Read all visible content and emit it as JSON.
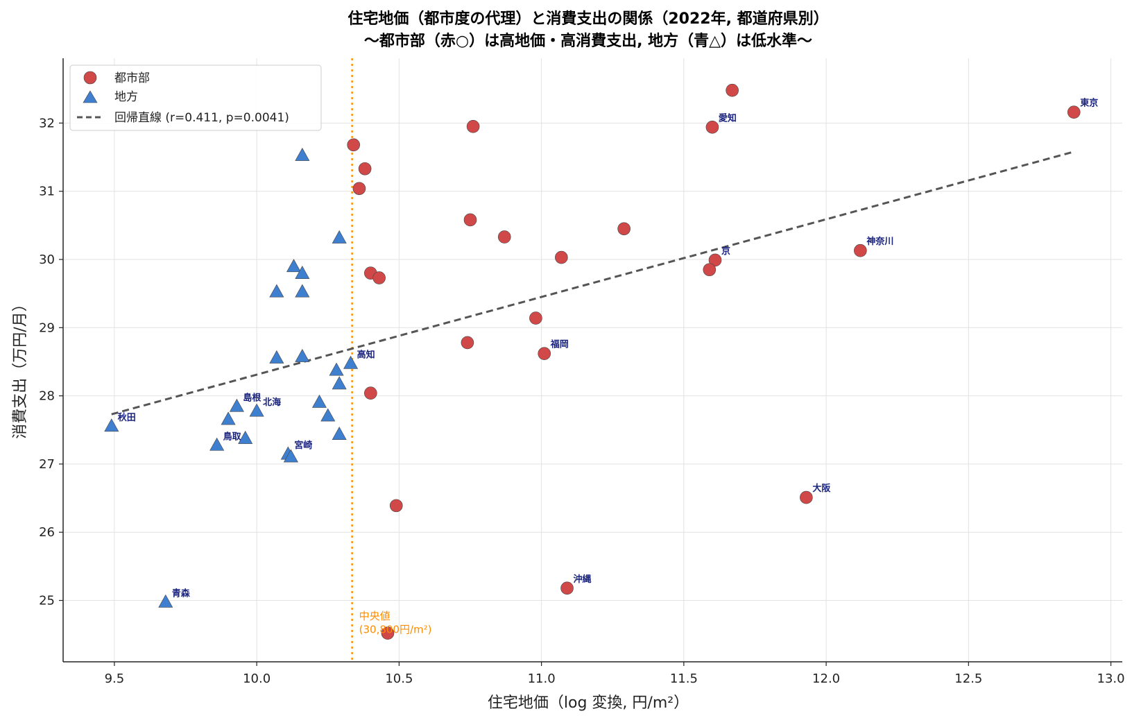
{
  "chart_data": {
    "type": "scatter",
    "title_line1": "住宅地価（都市度の代理）と消費支出の関係（2022年, 都道府県別）",
    "title_line2": "〜都市部（赤○）は高地価・高消費支出, 地方（青△）は低水準〜",
    "xlabel": "住宅地価（log 変換, 円/m²）",
    "ylabel": "消費支出（万円/月）",
    "xlim": [
      9.32,
      13.04
    ],
    "ylim": [
      24.1,
      32.95
    ],
    "xticks": [
      9.5,
      10.0,
      10.5,
      11.0,
      11.5,
      12.0,
      12.5,
      13.0
    ],
    "xtick_labels": [
      "9.5",
      "10.0",
      "10.5",
      "11.0",
      "11.5",
      "12.0",
      "12.5",
      "13.0"
    ],
    "yticks": [
      25,
      26,
      27,
      28,
      29,
      30,
      31,
      32
    ],
    "ytick_labels": [
      "25",
      "26",
      "27",
      "28",
      "29",
      "30",
      "31",
      "32"
    ],
    "grid": true,
    "legend_position": "top-left",
    "legend": {
      "urban": "都市部",
      "rural": "地方",
      "regression": "回帰直線 (r=0.411, p=0.0041)"
    },
    "colors": {
      "urban": "#d04848",
      "rural": "#3f7fcf",
      "regression": "#555555",
      "median": "#ff9800",
      "label": "#1a237e"
    },
    "regression": {
      "x": [
        9.49,
        12.87
      ],
      "y": [
        27.73,
        31.58
      ]
    },
    "median_x": 10.335,
    "median_label_line1": "中央値",
    "median_label_line2": "(30,800円/m²)",
    "series": [
      {
        "name": "都市部",
        "marker": "circle",
        "points": [
          {
            "x": 11.67,
            "y": 32.48,
            "label": ""
          },
          {
            "x": 12.87,
            "y": 32.16,
            "label": "東京"
          },
          {
            "x": 11.6,
            "y": 31.94,
            "label": "愛知"
          },
          {
            "x": 10.76,
            "y": 31.95,
            "label": ""
          },
          {
            "x": 10.34,
            "y": 31.68,
            "label": ""
          },
          {
            "x": 10.38,
            "y": 31.33,
            "label": ""
          },
          {
            "x": 10.36,
            "y": 31.04,
            "label": ""
          },
          {
            "x": 10.75,
            "y": 30.58,
            "label": ""
          },
          {
            "x": 11.29,
            "y": 30.45,
            "label": ""
          },
          {
            "x": 10.87,
            "y": 30.33,
            "label": ""
          },
          {
            "x": 12.12,
            "y": 30.13,
            "label": "神奈川"
          },
          {
            "x": 11.07,
            "y": 30.03,
            "label": ""
          },
          {
            "x": 11.61,
            "y": 29.99,
            "label": "京"
          },
          {
            "x": 11.59,
            "y": 29.85,
            "label": ""
          },
          {
            "x": 10.4,
            "y": 29.8,
            "label": ""
          },
          {
            "x": 10.43,
            "y": 29.73,
            "label": ""
          },
          {
            "x": 10.98,
            "y": 29.14,
            "label": ""
          },
          {
            "x": 10.74,
            "y": 28.78,
            "label": ""
          },
          {
            "x": 11.01,
            "y": 28.62,
            "label": "福岡"
          },
          {
            "x": 10.4,
            "y": 28.04,
            "label": ""
          },
          {
            "x": 11.93,
            "y": 26.51,
            "label": "大阪"
          },
          {
            "x": 10.49,
            "y": 26.39,
            "label": ""
          },
          {
            "x": 11.09,
            "y": 25.18,
            "label": "沖縄"
          },
          {
            "x": 10.46,
            "y": 24.52,
            "label": ""
          }
        ]
      },
      {
        "name": "地方",
        "marker": "triangle",
        "points": [
          {
            "x": 10.16,
            "y": 31.52,
            "label": ""
          },
          {
            "x": 10.29,
            "y": 30.31,
            "label": ""
          },
          {
            "x": 10.13,
            "y": 29.89,
            "label": ""
          },
          {
            "x": 10.16,
            "y": 29.79,
            "label": ""
          },
          {
            "x": 10.07,
            "y": 29.52,
            "label": ""
          },
          {
            "x": 10.16,
            "y": 29.52,
            "label": ""
          },
          {
            "x": 10.07,
            "y": 28.55,
            "label": ""
          },
          {
            "x": 10.16,
            "y": 28.57,
            "label": ""
          },
          {
            "x": 10.33,
            "y": 28.47,
            "label": "高知"
          },
          {
            "x": 10.28,
            "y": 28.37,
            "label": ""
          },
          {
            "x": 10.29,
            "y": 28.17,
            "label": ""
          },
          {
            "x": 10.22,
            "y": 27.9,
            "label": ""
          },
          {
            "x": 9.93,
            "y": 27.84,
            "label": "島根"
          },
          {
            "x": 10.0,
            "y": 27.77,
            "label": "北海"
          },
          {
            "x": 10.25,
            "y": 27.7,
            "label": ""
          },
          {
            "x": 9.9,
            "y": 27.65,
            "label": ""
          },
          {
            "x": 9.49,
            "y": 27.55,
            "label": "秋田"
          },
          {
            "x": 10.29,
            "y": 27.43,
            "label": ""
          },
          {
            "x": 9.96,
            "y": 27.37,
            "label": ""
          },
          {
            "x": 9.86,
            "y": 27.27,
            "label": "鳥取"
          },
          {
            "x": 10.11,
            "y": 27.14,
            "label": "宮崎"
          },
          {
            "x": 10.12,
            "y": 27.1,
            "label": ""
          },
          {
            "x": 9.68,
            "y": 24.97,
            "label": "青森"
          }
        ]
      }
    ]
  }
}
